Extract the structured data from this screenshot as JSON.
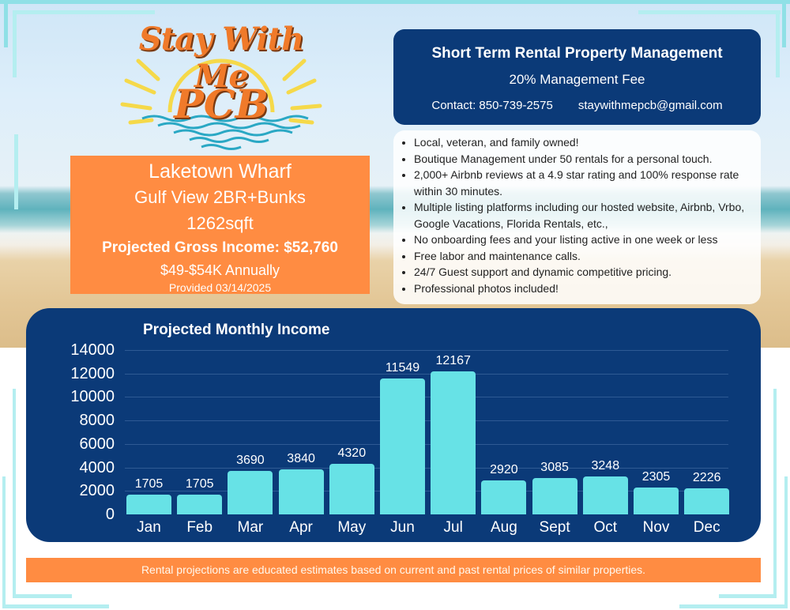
{
  "logo": {
    "line1": "Stay With Me",
    "line2": "PCB"
  },
  "property": {
    "name": "Laketown Wharf",
    "unit": "Gulf View 2BR+Bunks",
    "size": "1262sqft",
    "gross_income": "Projected Gross Income: $52,760",
    "range": "$49-$54K Annually",
    "provided": "Provided 03/14/2025"
  },
  "management": {
    "title": "Short Term Rental Property Management",
    "fee": "20% Management Fee",
    "contact_phone": "Contact: 850-739-2575",
    "contact_email": "staywithmepcb@gmail.com"
  },
  "features": [
    "Local, veteran, and family owned!",
    "Boutique Management under 50 rentals for a personal touch.",
    "2,000+ Airbnb reviews at a 4.9 star rating and 100% response rate within 30 minutes.",
    "Multiple listing platforms including our hosted website, Airbnb, Vrbo, Google Vacations, Florida Rentals, etc.,",
    "No onboarding fees and your listing active in one week or less",
    "Free labor and maintenance calls.",
    "24/7 Guest support and dynamic competitive pricing.",
    "Professional photos included!"
  ],
  "disclaimer": "Rental projections are educated estimates based on current and past rental prices of similar properties.",
  "colors": {
    "navy": "#0b3a78",
    "orange": "#ff8c42",
    "bar": "#67e2e6",
    "frame": "#8fe0e6"
  },
  "chart_data": {
    "type": "bar",
    "title": "Projected Monthly Income",
    "xlabel": "",
    "ylabel": "",
    "categories": [
      "Jan",
      "Feb",
      "Mar",
      "Apr",
      "May",
      "Jun",
      "Jul",
      "Aug",
      "Sept",
      "Oct",
      "Nov",
      "Dec"
    ],
    "values": [
      1705,
      1705,
      3690,
      3840,
      4320,
      11549,
      12167,
      2920,
      3085,
      3248,
      2305,
      2226
    ],
    "ylim": [
      0,
      14000
    ],
    "yticks": [
      "14000",
      "12000",
      "10000",
      "8000",
      "6000",
      "4000",
      "2000",
      "0"
    ],
    "grid": true,
    "legend": "none",
    "data_labels": true
  }
}
